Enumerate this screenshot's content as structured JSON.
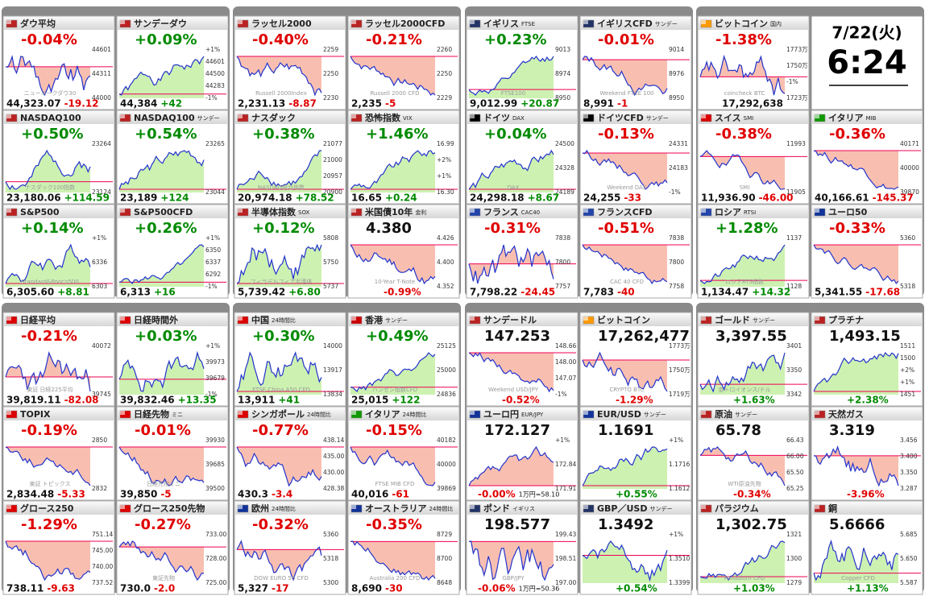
{
  "datebox": {
    "date": "7/22(火)",
    "time": "6:24"
  },
  "tiles": [
    {
      "name": "ダウ平均",
      "change_pct": "-0.04%",
      "price": "44,323.07",
      "change": "-19.12",
      "labels": [
        "44601",
        "44311",
        "44000",
        "ニューヨークダウ30"
      ]
    },
    {
      "name": "サンデーダウ",
      "change_pct": "+0.09%",
      "price": "44,384",
      "change": "+42",
      "labels": [
        "+1%",
        "44601",
        "44500",
        "44283",
        "-1%"
      ]
    },
    {
      "name": "NASDAQ100",
      "change_pct": "+0.50%",
      "price": "23,180.06",
      "change": "+114.59",
      "labels": [
        "23264",
        "23124",
        "ナスダック100指数"
      ]
    },
    {
      "name": "NASDAQ100",
      "sub": "サンデー",
      "change_pct": "+0.54%",
      "price": "23,189",
      "change": "+124",
      "labels": [
        "23265",
        "23044"
      ]
    },
    {
      "name": "S&P500",
      "change_pct": "+0.14%",
      "price": "6,305.60",
      "change": "+8.81",
      "labels": [
        "+1%",
        "6336",
        "6303",
        "Standard&Poor's500"
      ]
    },
    {
      "name": "S&P500CFD",
      "change_pct": "+0.26%",
      "price": "6,313",
      "change": "+16",
      "labels": [
        "+1%",
        "6350",
        "6337",
        "6292",
        "-1%"
      ]
    },
    {
      "name": "ラッセル2000",
      "change_pct": "-0.40%",
      "price": "2,231.13",
      "change": "-8.87",
      "labels": [
        "2259",
        "2250",
        "2230",
        "Russell 2000Index"
      ]
    },
    {
      "name": "ラッセル2000CFD",
      "change_pct": "-0.21%",
      "price": "2,235",
      "change": "-5",
      "labels": [
        "2260",
        "2250",
        "2229",
        "Russell 2000 CFD"
      ]
    },
    {
      "name": "ナスダック",
      "change_pct": "+0.38%",
      "price": "20,974.18",
      "change": "+78.52",
      "labels": [
        "21077",
        "21000",
        "20957",
        "20900",
        "NASDAQ総合指数"
      ]
    },
    {
      "name": "恐怖指数",
      "sub": "VIX",
      "change_pct": "+1.46%",
      "price": "16.65",
      "change": "+0.24",
      "labels": [
        "16.99",
        "+2%",
        "+1%",
        "16.30"
      ]
    },
    {
      "name": "半導体指数",
      "sub": "SOX",
      "change_pct": "+0.12%",
      "price": "5,739.42",
      "change": "+6.80",
      "labels": [
        "5808",
        "5750",
        "5737",
        "フィラデルフィア半導体"
      ]
    },
    {
      "name": "米国債10年",
      "sub": "金利",
      "price": "4.380",
      "change_pct": "-0.99%",
      "labels": [
        "4.426",
        "4.400",
        "4.352",
        "10-Year T-Note"
      ]
    },
    {
      "name": "イギリス",
      "sub": "FTSE",
      "change_pct": "+0.23%",
      "price": "9,012.99",
      "change": "+20.87",
      "labels": [
        "9013",
        "8974",
        "8950",
        "FTSE100"
      ]
    },
    {
      "name": "イギリスCFD",
      "sub": "サンデー",
      "change_pct": "-0.01%",
      "price": "8,991",
      "change": "-1",
      "labels": [
        "9014",
        "8976",
        "8950",
        "Weekend FTSE 100"
      ]
    },
    {
      "name": "ドイツ",
      "sub": "DAX",
      "change_pct": "+0.04%",
      "price": "24,298.18",
      "change": "+8.67",
      "labels": [
        "24500",
        "24328",
        "24189",
        "DAX"
      ]
    },
    {
      "name": "ドイツCFD",
      "sub": "サンデー",
      "change_pct": "-0.13%",
      "price": "24,255",
      "change": "-33",
      "labels": [
        "24331",
        "24183",
        "-1%",
        "Weekend DAX"
      ]
    },
    {
      "name": "フランス",
      "sub": "CAC40",
      "change_pct": "-0.31%",
      "price": "7,798.22",
      "change": "-24.45",
      "labels": [
        "7838",
        "7800",
        "7757"
      ]
    },
    {
      "name": "フランスCFD",
      "change_pct": "-0.51%",
      "price": "7,783",
      "change": "-40",
      "labels": [
        "7838",
        "7800",
        "7758",
        "CAC 40 CFD"
      ]
    },
    {
      "name": "ビットコイン",
      "sub": "国内",
      "change_pct": "-1.38%",
      "price": "17,292,638",
      "labels": [
        "1773万",
        "1750万",
        "-1%",
        "1723万",
        "coincheck BTC"
      ]
    },
    {
      "name": "スイス",
      "sub": "SMI",
      "change_pct": "-0.38%",
      "price": "11,936.90",
      "change": "-46.00",
      "labels": [
        "11993",
        "11905",
        "SMI"
      ]
    },
    {
      "name": "イタリア",
      "sub": "MIB",
      "change_pct": "-0.36%",
      "price": "40,166.61",
      "change": "-145.37",
      "labels": [
        "40171",
        "40000",
        "39870"
      ]
    },
    {
      "name": "ロシア",
      "sub": "RTSI",
      "change_pct": "+1.28%",
      "price": "1,134.47",
      "change": "+14.32",
      "labels": [
        "1137",
        "1128",
        "ロシアRTS指数"
      ]
    },
    {
      "name": "ユーロ50",
      "change_pct": "-0.33%",
      "price": "5,341.55",
      "change": "-17.68",
      "labels": [
        "5360",
        "5318"
      ]
    },
    {
      "name": "日経平均",
      "change_pct": "-0.21%",
      "price": "39,819.11",
      "change": "-82.08",
      "labels": [
        "40072",
        "39745",
        "東証 日経225平均"
      ]
    },
    {
      "name": "日経時間外",
      "change_pct": "+0.03%",
      "price": "39,832.46",
      "change": "+13.35",
      "labels": [
        "+1%",
        "39973",
        "39679",
        "-1%"
      ]
    },
    {
      "name": "TOPIX",
      "change_pct": "-0.19%",
      "price": "2,834.48",
      "change": "-5.33",
      "labels": [
        "2850",
        "2832",
        "東証 トピックス"
      ]
    },
    {
      "name": "日経先物",
      "sub": "ミニ",
      "change_pct": "-0.01%",
      "price": "39,850",
      "change": "-5",
      "labels": [
        "39930",
        "39685",
        "39500",
        "日経先物ミニ"
      ]
    },
    {
      "name": "グロース250",
      "change_pct": "-1.29%",
      "price": "738.11",
      "change": "-9.63",
      "labels": [
        "751.14",
        "745.00",
        "740.00",
        "737.52"
      ]
    },
    {
      "name": "グロース250先物",
      "change_pct": "-0.27%",
      "price": "730.0",
      "change": "-2.0",
      "labels": [
        "733.00",
        "728.00",
        "725.00",
        "東証先物"
      ]
    },
    {
      "name": "中国",
      "sub": "24時間比",
      "change_pct": "+0.30%",
      "price": "13,911",
      "change": "+41",
      "labels": [
        "14000",
        "13917",
        "13834",
        "FTSE China A50 CFD"
      ]
    },
    {
      "name": "香港",
      "sub": "サンデー",
      "change_pct": "+0.49%",
      "price": "25,015",
      "change": "+122",
      "labels": [
        "25125",
        "25000",
        "24836",
        "ハンセン指数CFD"
      ]
    },
    {
      "name": "シンガポール",
      "sub": "24時間比",
      "change_pct": "-0.77%",
      "price": "430.3",
      "change": "-3.4",
      "labels": [
        "438.14",
        "435.00",
        "430.00",
        "428.38"
      ]
    },
    {
      "name": "イタリア",
      "sub": "24時間比",
      "change_pct": "-0.15%",
      "price": "40,016",
      "change": "-61",
      "labels": [
        "40182",
        "40000",
        "39869",
        "FTSE MIB CFD"
      ]
    },
    {
      "name": "欧州",
      "sub": "24時間比",
      "change_pct": "-0.32%",
      "price": "5,327",
      "change": "-17",
      "labels": [
        "5360",
        "5318",
        "5300",
        "DOW EURO 50 CFD"
      ]
    },
    {
      "name": "オーストラリア",
      "sub": "24時間比",
      "change_pct": "-0.35%",
      "price": "8,690",
      "change": "-30",
      "labels": [
        "8729",
        "8700",
        "8648",
        "Australia 200 CFD"
      ]
    },
    {
      "name": "サンデードル",
      "price": "147.253",
      "change_pct": "-0.52%",
      "labels": [
        "148.66",
        "148.00",
        "147.07",
        "-1%",
        "Weekend USD/JPY"
      ]
    },
    {
      "name": "ビットコイン",
      "change_pct": "-1.29%",
      "price": "17,262,477",
      "labels": [
        "1773万",
        "1750万",
        "1719万",
        "CRYPTO BTC"
      ]
    },
    {
      "name": "ユーロ円",
      "sub": "EUR/JPY",
      "price": "172.127",
      "change_pct": "-0.00%",
      "note": "1万円=58.10",
      "labels": [
        "+1%",
        "172.84",
        "171.91"
      ]
    },
    {
      "name": "EUR/USD",
      "sub": "サンデー",
      "price": "1.1691",
      "change_pct": "+0.55%",
      "labels": [
        "+1%",
        "1.1716",
        "1.1612"
      ]
    },
    {
      "name": "ポンド",
      "sub": "イギリス",
      "price": "198.577",
      "change_pct": "-0.06%",
      "note": "1万円=50.36",
      "labels": [
        "199.43",
        "198.51",
        "197.00",
        "GBP/JPY"
      ]
    },
    {
      "name": "GBP／USD",
      "sub": "サンデー",
      "price": "1.3492",
      "change_pct": "+0.54%",
      "labels": [
        "+1%",
        "1.3510",
        "1.3399"
      ]
    },
    {
      "name": "ゴールド",
      "sub": "サンデー",
      "price": "3,397.55",
      "change_pct": "+1.63%",
      "labels": [
        "3401",
        "3350",
        "3342",
        "金トロイオンス/ドル"
      ]
    },
    {
      "name": "プラチナ",
      "price": "1,493.15",
      "change_pct": "+2.38%",
      "labels": [
        "1511",
        "1500",
        "+2%",
        "+1%",
        "1451"
      ]
    },
    {
      "name": "原油",
      "sub": "サンデー",
      "price": "65.78",
      "change_pct": "-0.34%",
      "labels": [
        "66.43",
        "66.00",
        "65.50",
        "65.25",
        "WTI原油先物"
      ]
    },
    {
      "name": "天然ガス",
      "price": "3.319",
      "change_pct": "-3.96%",
      "labels": [
        "3.456",
        "3.400",
        "3.350",
        "3.287"
      ]
    },
    {
      "name": "パラジウム",
      "price": "1,302.75",
      "change_pct": "+1.03%",
      "labels": [
        "1321",
        "1300",
        "1279",
        "Palladium CFD"
      ]
    },
    {
      "name": "銅",
      "price": "5.6666",
      "change_pct": "+1.13%",
      "labels": [
        "5.685",
        "5.650",
        "5.587",
        "Copper CFD"
      ]
    }
  ]
}
